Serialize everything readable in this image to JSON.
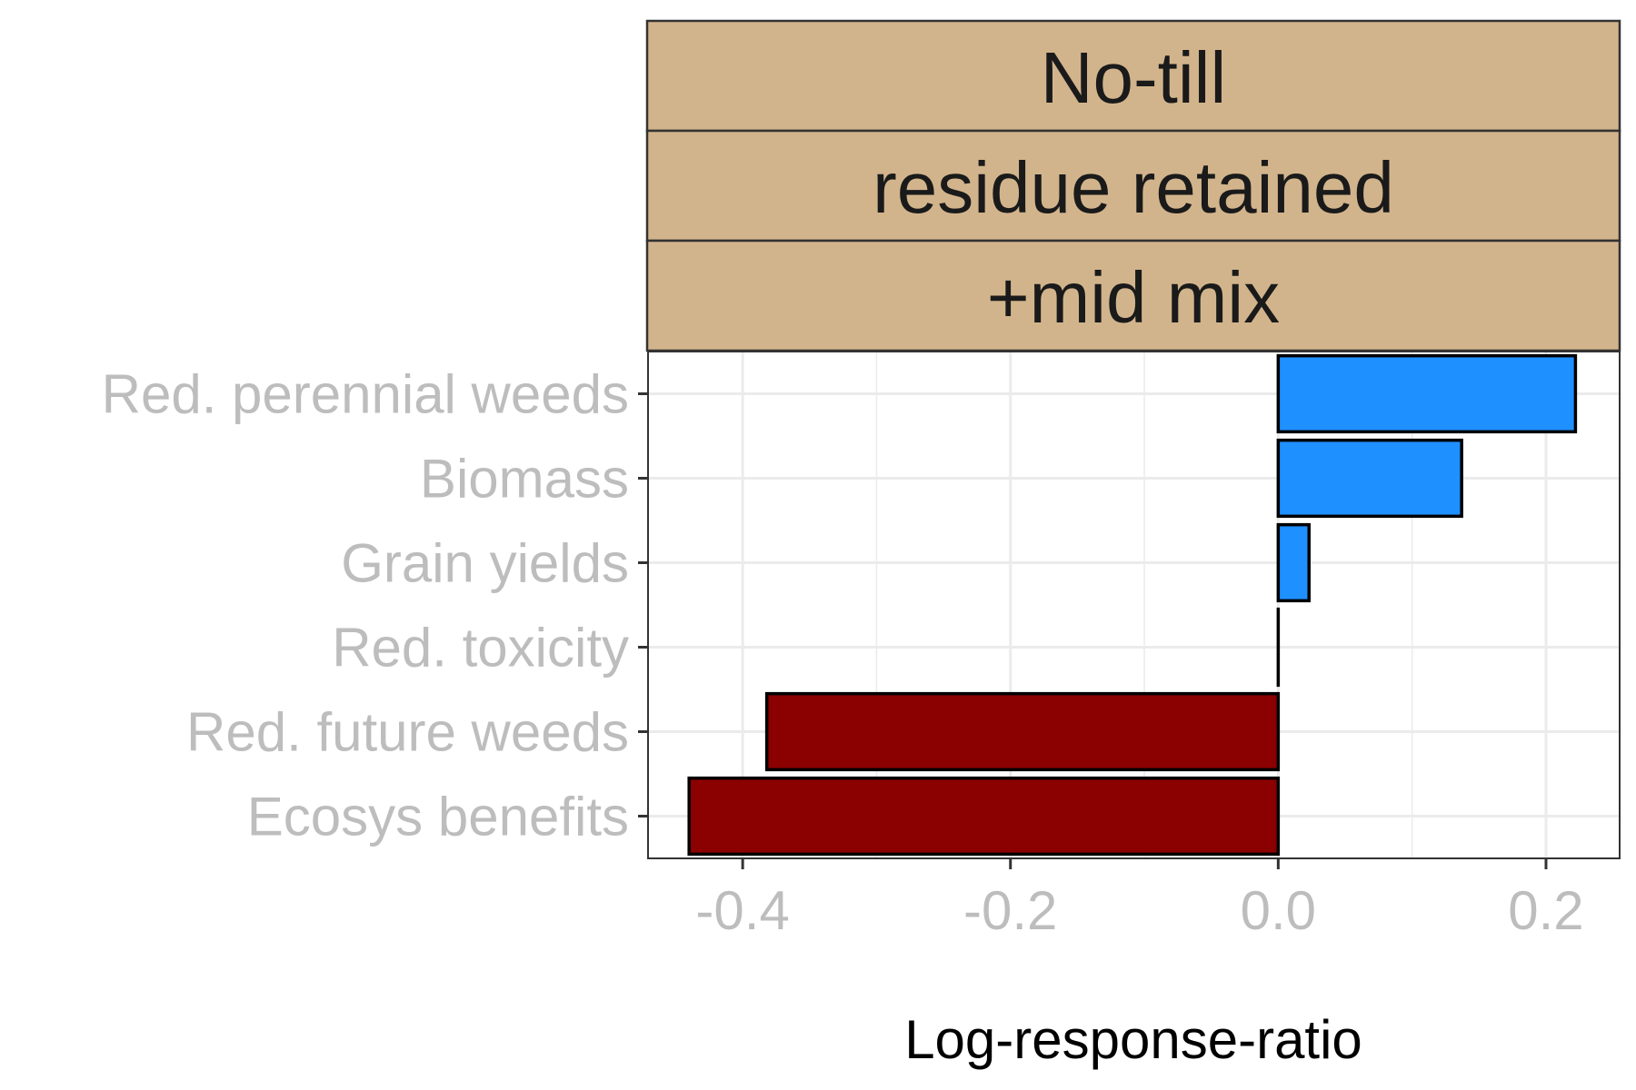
{
  "chart_data": {
    "type": "bar",
    "orientation": "horizontal",
    "facet_strips": [
      "No-till",
      "residue retained",
      "+mid mix"
    ],
    "categories": [
      "Red. perennial weeds",
      "Biomass",
      "Grain yields",
      "Red. toxicity",
      "Red. future weeds",
      "Ecosys benefits"
    ],
    "values": [
      0.222,
      0.137,
      0.023,
      0.0,
      -0.382,
      -0.44
    ],
    "xlabel": "Log-response-ratio",
    "ylabel": "",
    "xlim": [
      -0.47,
      0.255
    ],
    "xticks": [
      -0.4,
      -0.2,
      0.0,
      0.2
    ],
    "xtick_labels": [
      "-0.4",
      "-0.2",
      "0.0",
      "0.2"
    ],
    "grid": true,
    "colors": {
      "positive": "#1E90FF",
      "negative": "#8B0000",
      "strip_fill": "#D2B48C",
      "bar_outline": "#000000",
      "grid": "#ebebeb",
      "tick_label": "#bdbdbd"
    }
  }
}
